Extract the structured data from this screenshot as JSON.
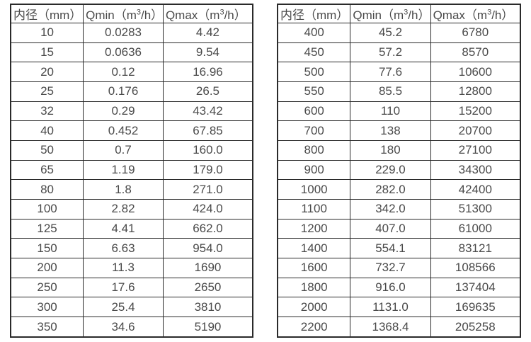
{
  "colors": {
    "background": "#ffffff",
    "border": "#2a2a2a",
    "text": "#4a4a4a"
  },
  "chart_data": [
    {
      "type": "table",
      "headers": {
        "diameter": "内径（mm）",
        "qmin_prefix": "Qmin（m",
        "qmin_sup": "3",
        "qmin_suffix": "/h）",
        "qmax_prefix": "Qmax（m",
        "qmax_sup": "3",
        "qmax_suffix": "/h）"
      },
      "rows": [
        [
          "10",
          "0.0283",
          "4.42"
        ],
        [
          "15",
          "0.0636",
          "9.54"
        ],
        [
          "20",
          "0.12",
          "16.96"
        ],
        [
          "25",
          "0.176",
          "26.5"
        ],
        [
          "32",
          "0.29",
          "43.42"
        ],
        [
          "40",
          "0.452",
          "67.85"
        ],
        [
          "50",
          "0.7",
          "160.0"
        ],
        [
          "65",
          "1.19",
          "179.0"
        ],
        [
          "80",
          "1.8",
          "271.0"
        ],
        [
          "100",
          "2.82",
          "424.0"
        ],
        [
          "125",
          "4.41",
          "662.0"
        ],
        [
          "150",
          "6.63",
          "954.0"
        ],
        [
          "200",
          "11.3",
          "1690"
        ],
        [
          "250",
          "17.6",
          "2650"
        ],
        [
          "300",
          "25.4",
          "3810"
        ],
        [
          "350",
          "34.6",
          "5190"
        ]
      ]
    },
    {
      "type": "table",
      "headers": {
        "diameter": "内径（mm）",
        "qmin_prefix": "Qmin（m",
        "qmin_sup": "3",
        "qmin_suffix": "/h）",
        "qmax_prefix": "Qmax（m",
        "qmax_sup": "3",
        "qmax_suffix": "/h）"
      },
      "rows": [
        [
          "400",
          "45.2",
          "6780"
        ],
        [
          "450",
          "57.2",
          "8570"
        ],
        [
          "500",
          "77.6",
          "10600"
        ],
        [
          "550",
          "85.5",
          "12800"
        ],
        [
          "600",
          "110",
          "15200"
        ],
        [
          "700",
          "138",
          "20700"
        ],
        [
          "800",
          "180",
          "27100"
        ],
        [
          "900",
          "229.0",
          "34300"
        ],
        [
          "1000",
          "282.0",
          "42400"
        ],
        [
          "1100",
          "342.0",
          "51300"
        ],
        [
          "1200",
          "407.0",
          "61000"
        ],
        [
          "1400",
          "554.1",
          "83121"
        ],
        [
          "1600",
          "732.7",
          "108566"
        ],
        [
          "1800",
          "916.0",
          "137404"
        ],
        [
          "2000",
          "1131.0",
          "169635"
        ],
        [
          "2200",
          "1368.4",
          "205258"
        ]
      ]
    }
  ]
}
